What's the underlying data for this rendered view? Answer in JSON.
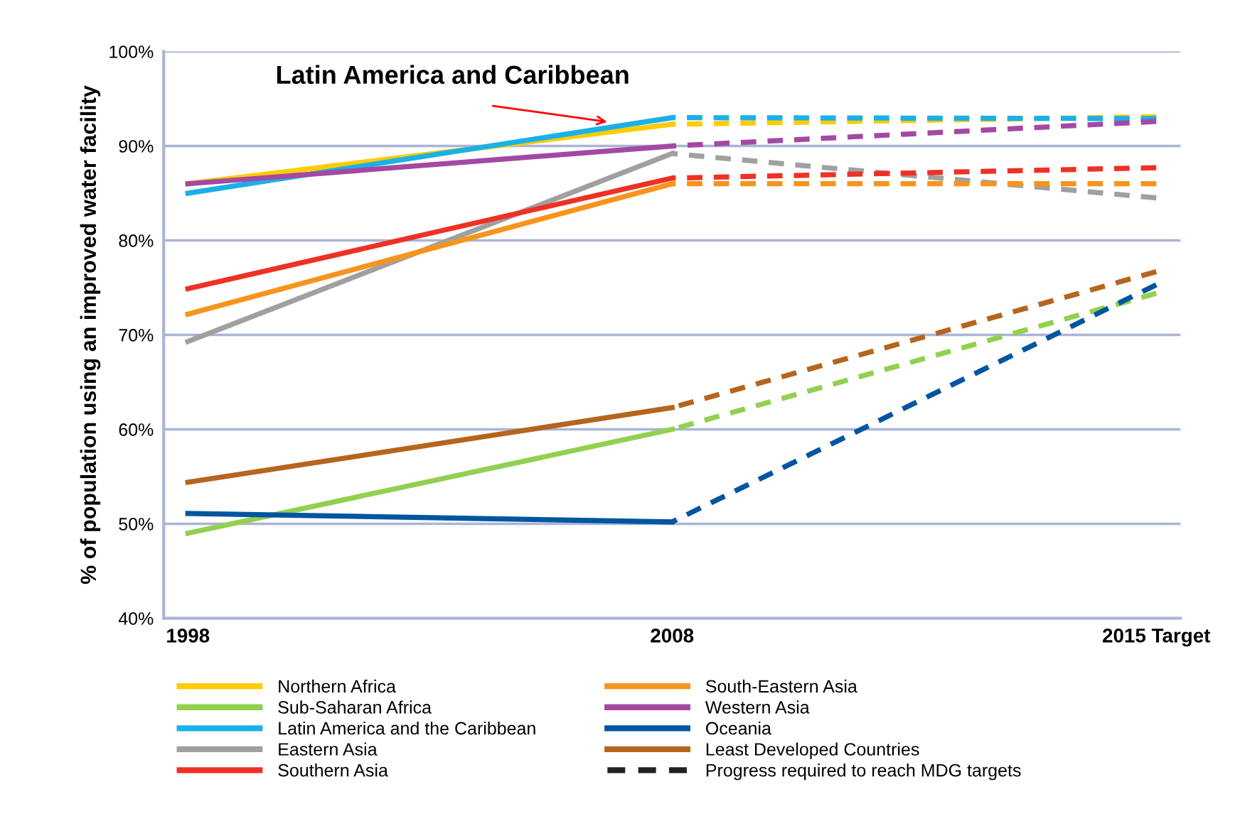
{
  "chart_data": {
    "type": "line",
    "ylabel": "% of population using an improved water facility",
    "categories": [
      "1998",
      "2008",
      "2015 Target"
    ],
    "ylim": [
      40,
      100
    ],
    "yticks": [
      {
        "value": 40,
        "label": "40%"
      },
      {
        "value": 50,
        "label": "50%"
      },
      {
        "value": 60,
        "label": "60%"
      },
      {
        "value": 70,
        "label": "70%"
      },
      {
        "value": 80,
        "label": "80%"
      },
      {
        "value": 90,
        "label": "90%"
      },
      {
        "value": 100,
        "label": "100%"
      }
    ],
    "grid": "y",
    "legend": "bottom",
    "marker": "none",
    "annotations": [
      "Latin America and Caribbean"
    ],
    "series": [
      {
        "name": "Northern Africa",
        "color": "#ffcc00",
        "line_style": "solid",
        "values": [
          86,
          92.3,
          null
        ]
      },
      {
        "name": "Sub-Saharan Africa",
        "color": "#92d050",
        "line_style": "solid",
        "values": [
          49,
          60,
          null
        ]
      },
      {
        "name": "Latin America and the Caribbean",
        "color": "#1ab0e8",
        "line_style": "solid",
        "values": [
          85,
          93,
          null
        ]
      },
      {
        "name": "Eastern Asia",
        "color": "#a0a0a0",
        "line_style": "solid",
        "values": [
          69.3,
          89.2,
          null
        ]
      },
      {
        "name": "Southern Asia",
        "color": "#ee3124",
        "line_style": "solid",
        "values": [
          74.9,
          86.6,
          null
        ]
      },
      {
        "name": "South-Eastern Asia",
        "color": "#f7941d",
        "line_style": "solid",
        "values": [
          72.2,
          86,
          null
        ]
      },
      {
        "name": "Western Asia",
        "color": "#a349a4",
        "line_style": "solid",
        "values": [
          86,
          90,
          null
        ]
      },
      {
        "name": "Oceania",
        "color": "#0055a0",
        "line_style": "solid",
        "values": [
          51.1,
          50.2,
          null
        ]
      },
      {
        "name": "Least Developed Countries",
        "color": "#b5651d",
        "line_style": "solid",
        "values": [
          54.4,
          62.3,
          null
        ]
      },
      {
        "name": "Progress required to reach MDG targets",
        "color": "#222222",
        "line_style": "dashed",
        "values": [
          null,
          null,
          null
        ]
      },
      {
        "color": "#ffcc00",
        "line_style": "dashed",
        "values": [
          null,
          92.3,
          93.1
        ]
      },
      {
        "color": "#92d050",
        "line_style": "dashed",
        "values": [
          null,
          60,
          74.4
        ]
      },
      {
        "color": "#1ab0e8",
        "line_style": "dashed",
        "values": [
          null,
          93,
          92.9
        ]
      },
      {
        "color": "#a0a0a0",
        "line_style": "dashed",
        "values": [
          null,
          89.2,
          84.5
        ]
      },
      {
        "color": "#ee3124",
        "line_style": "dashed",
        "values": [
          null,
          86.6,
          87.7
        ]
      },
      {
        "color": "#f7941d",
        "line_style": "dashed",
        "values": [
          null,
          86,
          86
        ]
      },
      {
        "color": "#a349a4",
        "line_style": "dashed",
        "values": [
          null,
          90,
          92.6
        ]
      },
      {
        "color": "#0055a0",
        "line_style": "dashed",
        "values": [
          null,
          50.2,
          75.3
        ]
      },
      {
        "color": "#b5651d",
        "line_style": "dashed",
        "values": [
          null,
          62.3,
          76.7
        ]
      }
    ]
  }
}
